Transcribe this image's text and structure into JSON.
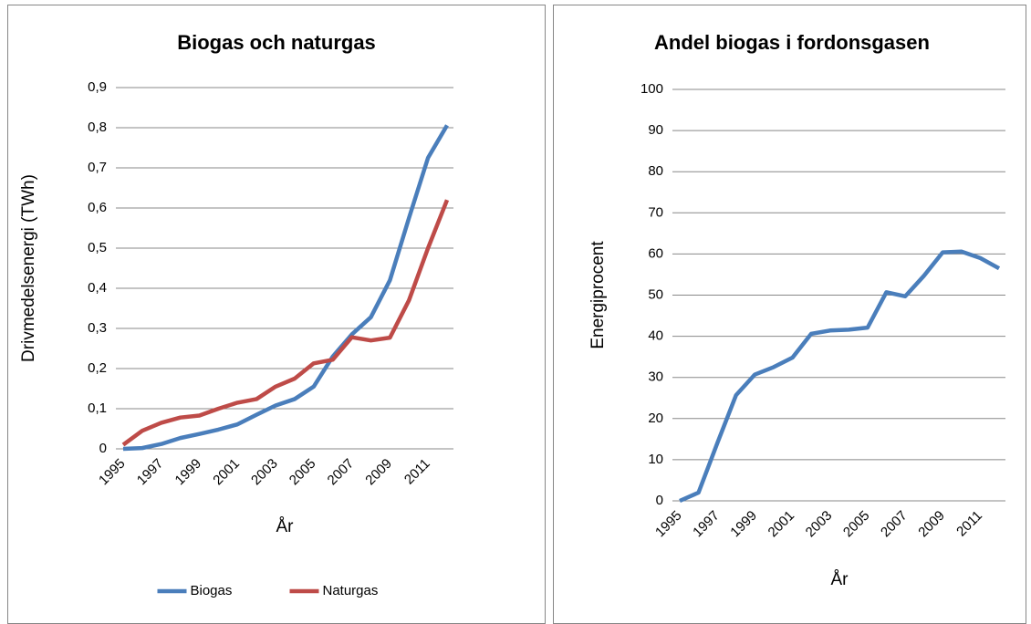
{
  "chart_data": [
    {
      "type": "line",
      "title": "Biogas och naturgas",
      "x_label": "År",
      "y_label": "Drivmedelsenergi (TWh)",
      "categories": [
        "1995",
        null,
        "1997",
        null,
        "1999",
        null,
        "2001",
        null,
        "2003",
        null,
        "2005",
        null,
        "2007",
        null,
        "2009",
        null,
        "2011",
        null
      ],
      "series": [
        {
          "name": "Biogas",
          "color": "#4a7ebb",
          "values": [
            0,
            0.002,
            0.012,
            0.027,
            0.037,
            0.048,
            0.061,
            0.085,
            0.108,
            0.124,
            0.155,
            0.23,
            0.285,
            0.328,
            0.42,
            0.575,
            0.725,
            0.806
          ]
        },
        {
          "name": "Naturgas",
          "color": "#be4b48",
          "values": [
            0.01,
            0.045,
            0.065,
            0.078,
            0.083,
            0.1,
            0.115,
            0.124,
            0.155,
            0.175,
            0.213,
            0.222,
            0.278,
            0.27,
            0.277,
            0.37,
            0.5,
            0.62
          ]
        }
      ],
      "ylim": [
        0,
        0.9
      ],
      "yticks": [
        0,
        {
          "value": 0.1,
          "label": "0,1"
        },
        {
          "value": 0.2,
          "label": "0,2"
        },
        {
          "value": 0.3,
          "label": "0,3"
        },
        {
          "value": 0.4,
          "label": "0,4"
        },
        {
          "value": 0.5,
          "label": "0,5"
        },
        {
          "value": 0.6,
          "label": "0,6"
        },
        {
          "value": 0.7,
          "label": "0,7"
        },
        {
          "value": 0.8,
          "label": "0,8"
        },
        {
          "value": 0.9,
          "label": "0,9"
        }
      ],
      "grid": true,
      "legend": "bottom"
    },
    {
      "type": "line",
      "title": "Andel biogas i fordonsgasen",
      "x_label": "År",
      "y_label": "Energiprocent",
      "categories": [
        "1995",
        null,
        "1997",
        null,
        "1999",
        null,
        "2001",
        null,
        "2003",
        null,
        "2005",
        null,
        "2007",
        null,
        "2009",
        null,
        "2011",
        null
      ],
      "series": [
        {
          "color": "#4a7ebb",
          "values": [
            0,
            2,
            14,
            25.7,
            30.7,
            32.5,
            34.8,
            40.6,
            41.4,
            41.6,
            42.1,
            50.7,
            49.7,
            54.7,
            60.4,
            60.6,
            59,
            56.5
          ]
        }
      ],
      "ylim": [
        0,
        100
      ],
      "yticks": [
        0,
        10,
        20,
        30,
        40,
        50,
        60,
        70,
        80,
        90,
        100
      ],
      "grid": true
    }
  ]
}
